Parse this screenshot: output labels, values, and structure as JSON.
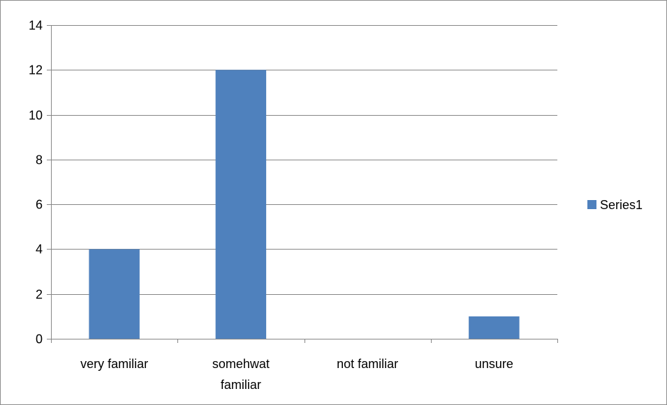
{
  "chart_data": {
    "type": "bar",
    "categories": [
      [
        "very familiar"
      ],
      [
        "somehwat",
        "familiar"
      ],
      [
        "not familiar"
      ],
      [
        "unsure"
      ]
    ],
    "series": [
      {
        "name": "Series1",
        "values": [
          4,
          12,
          0,
          1
        ],
        "color": "#4f81bd"
      }
    ],
    "ylim": [
      0,
      14
    ],
    "yticks": [
      0,
      2,
      4,
      6,
      8,
      10,
      12,
      14
    ],
    "grid": true,
    "legend": "right",
    "gridline_color": "#868686",
    "axis_color": "#868686"
  }
}
